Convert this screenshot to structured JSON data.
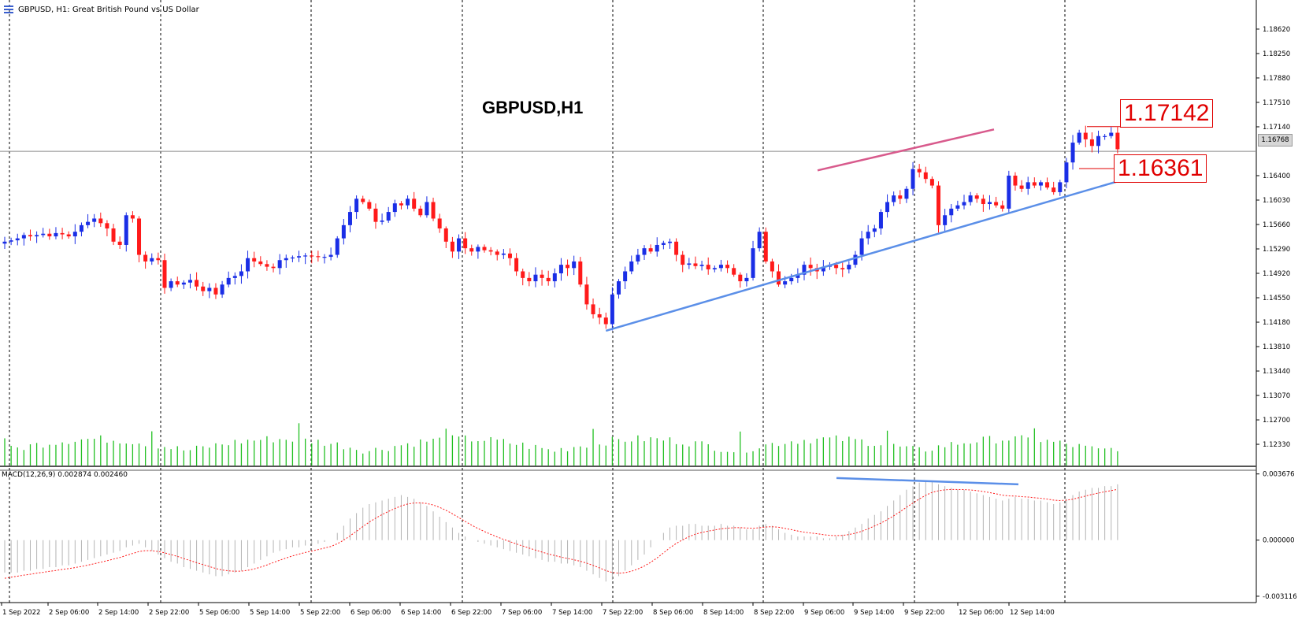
{
  "header": {
    "symbol": "GBPUSD, H1:",
    "description": "Great British Pound vs US Dollar"
  },
  "chart_title": "GBPUSD,H1",
  "macd_label": "MACD(12,26,9) 0.002874 0.002460",
  "current_price": "1.16768",
  "level_labels": [
    "1.17142",
    "1.16361"
  ],
  "colors": {
    "bull_candle": "#1a2ee6",
    "bear_candle": "#ff1a1a",
    "volume": "#22c022",
    "macd_histogram": "#b4b4b4",
    "macd_signal": "#ff1a1a",
    "trend_support": "#5b8fe8",
    "trend_resistance": "#d85a8c",
    "macd_trend": "#5b8fe8",
    "level_label": "#e00000"
  },
  "chart_data": [
    {
      "type": "candlestick",
      "title": "GBPUSD,H1",
      "y_ticks": [
        "1.18620",
        "1.18250",
        "1.17880",
        "1.17510",
        "1.17140",
        "1.16400",
        "1.16030",
        "1.15660",
        "1.15290",
        "1.14920",
        "1.14550",
        "1.14180",
        "1.13810",
        "1.13440",
        "1.13070",
        "1.12700",
        "1.12330"
      ],
      "ylim": [
        1.1208,
        1.1887
      ],
      "x_ticks": [
        "1 Sep 2022",
        "2 Sep 06:00",
        "2 Sep 14:00",
        "2 Sep 22:00",
        "5 Sep 06:00",
        "5 Sep 14:00",
        "5 Sep 22:00",
        "6 Sep 06:00",
        "6 Sep 14:00",
        "6 Sep 22:00",
        "7 Sep 06:00",
        "7 Sep 14:00",
        "7 Sep 22:00",
        "8 Sep 06:00",
        "8 Sep 14:00",
        "8 Sep 22:00",
        "9 Sep 06:00",
        "9 Sep 14:00",
        "9 Sep 22:00",
        "12 Sep 06:00",
        "12 Sep 14:00"
      ],
      "day_separators": [
        "2 Sep",
        "5 Sep",
        "6 Sep",
        "7 Sep",
        "8 Sep",
        "9 Sep",
        "12 Sep",
        "13 Sep"
      ],
      "close": [
        1.154,
        1.1542,
        1.1545,
        1.155,
        1.1548,
        1.155,
        1.1552,
        1.1548,
        1.1553,
        1.1551,
        1.1548,
        1.1555,
        1.1565,
        1.157,
        1.1575,
        1.1568,
        1.156,
        1.154,
        1.1535,
        1.158,
        1.1575,
        1.152,
        1.151,
        1.1515,
        1.1512,
        1.147,
        1.148,
        1.1475,
        1.1478,
        1.1482,
        1.1472,
        1.1465,
        1.147,
        1.146,
        1.1475,
        1.1485,
        1.1488,
        1.1495,
        1.1515,
        1.151,
        1.1506,
        1.1502,
        1.15,
        1.1512,
        1.1515,
        1.1516,
        1.1518,
        1.1519,
        1.1518,
        1.1517,
        1.1517,
        1.152,
        1.1545,
        1.1565,
        1.1585,
        1.1605,
        1.16,
        1.159,
        1.157,
        1.1572,
        1.1585,
        1.1598,
        1.1595,
        1.1605,
        1.159,
        1.158,
        1.16,
        1.1575,
        1.156,
        1.154,
        1.1525,
        1.1545,
        1.153,
        1.1525,
        1.1532,
        1.1527,
        1.1525,
        1.152,
        1.1522,
        1.1515,
        1.1495,
        1.1485,
        1.148,
        1.149,
        1.1485,
        1.148,
        1.1492,
        1.1505,
        1.15,
        1.151,
        1.1475,
        1.1445,
        1.143,
        1.1425,
        1.1415,
        1.146,
        1.148,
        1.1495,
        1.151,
        1.152,
        1.153,
        1.1525,
        1.1535,
        1.1538,
        1.154,
        1.152,
        1.1505,
        1.1507,
        1.1503,
        1.1505,
        1.1498,
        1.15,
        1.1505,
        1.15,
        1.149,
        1.148,
        1.1485,
        1.153,
        1.1555,
        1.151,
        1.1495,
        1.1475,
        1.148,
        1.1485,
        1.149,
        1.1505,
        1.15,
        1.1495,
        1.1502,
        1.1505,
        1.15,
        1.1498,
        1.1505,
        1.152,
        1.1545,
        1.1555,
        1.156,
        1.1585,
        1.16,
        1.161,
        1.1605,
        1.162,
        1.165,
        1.1645,
        1.1635,
        1.1625,
        1.1565,
        1.158,
        1.159,
        1.1595,
        1.16,
        1.161,
        1.1605,
        1.1597,
        1.16,
        1.1595,
        1.159,
        1.164,
        1.1625,
        1.162,
        1.163,
        1.1625,
        1.163,
        1.1622,
        1.1615,
        1.163,
        1.166,
        1.169,
        1.1705,
        1.1695,
        1.1685,
        1.17,
        1.17,
        1.1705,
        1.168
      ],
      "volume_scale": [
        0.02,
        0.05,
        0.08,
        0.18,
        0.25,
        0.2,
        0.18,
        0.12,
        0.22,
        0.25,
        0.3,
        0.35,
        0.3,
        0.32,
        0.3,
        0.28,
        0.3,
        0.4,
        0.85,
        0.8,
        0.75,
        0.5,
        0.4,
        0.3,
        0.15
      ]
    },
    {
      "type": "line",
      "title": "MACD(12,26,9)",
      "y_ticks": [
        "0.003676",
        "0.000000",
        "-0.003116"
      ],
      "ylim": [
        -0.00325,
        0.00375
      ],
      "histogram": [
        -0.0018,
        -0.0018,
        -0.0018,
        -0.0017,
        -0.0017,
        -0.0016,
        -0.0016,
        -0.0015,
        -0.0015,
        -0.0014,
        -0.0014,
        -0.0013,
        -0.0012,
        -0.0011,
        -0.001,
        -0.0009,
        -0.0008,
        -0.0007,
        -0.0006,
        -0.0004,
        -0.0003,
        -0.0002,
        -0.0004,
        -0.0006,
        -0.0008,
        -0.001,
        -0.0012,
        -0.0013,
        -0.0015,
        -0.0016,
        -0.0017,
        -0.0018,
        -0.0019,
        -0.002,
        -0.002,
        -0.0019,
        -0.0018,
        -0.0017,
        -0.0015,
        -0.0013,
        -0.0011,
        -0.0009,
        -0.0007,
        -0.0006,
        -0.0005,
        -0.0004,
        -0.0004,
        -0.0003,
        -0.0003,
        -0.0002,
        -0.0001,
        0.0,
        0.0004,
        0.0008,
        0.0012,
        0.0015,
        0.0018,
        0.002,
        0.0021,
        0.0022,
        0.0023,
        0.0024,
        0.0025,
        0.0024,
        0.0023,
        0.0021,
        0.0019,
        0.0016,
        0.0013,
        0.001,
        0.0007,
        0.0004,
        0.0002,
        0.0,
        -0.0001,
        -0.0002,
        -0.0003,
        -0.0004,
        -0.0005,
        -0.0006,
        -0.0007,
        -0.0008,
        -0.0009,
        -0.001,
        -0.0011,
        -0.0012,
        -0.0012,
        -0.0013,
        -0.0013,
        -0.0014,
        -0.0015,
        -0.0017,
        -0.0019,
        -0.0021,
        -0.0023,
        -0.0022,
        -0.002,
        -0.0017,
        -0.0014,
        -0.0011,
        -0.0008,
        -0.0004,
        0.0,
        0.0004,
        0.0007,
        0.0008,
        0.0008,
        0.0009,
        0.0009,
        0.0008,
        0.0008,
        0.0008,
        0.0009,
        0.0008,
        0.0008,
        0.0007,
        0.0006,
        0.0006,
        0.0008,
        0.0009,
        0.0008,
        0.0006,
        0.0004,
        0.0003,
        0.0002,
        0.0002,
        0.0002,
        0.0002,
        0.0001,
        0.0001,
        0.0002,
        0.0003,
        0.0005,
        0.0007,
        0.0009,
        0.0012,
        0.0014,
        0.0016,
        0.0019,
        0.0022,
        0.0025,
        0.0028,
        0.003,
        0.0032,
        0.0033,
        0.0033,
        0.0031,
        0.003,
        0.0029,
        0.0028,
        0.0028,
        0.0027,
        0.0026,
        0.0025,
        0.0024,
        0.0023,
        0.0022,
        0.0023,
        0.0024,
        0.0023,
        0.0023,
        0.0022,
        0.0022,
        0.0021,
        0.002,
        0.0021,
        0.0023,
        0.0025,
        0.0027,
        0.0028,
        0.0029,
        0.0029,
        0.003,
        0.003,
        0.0031
      ],
      "signal_start": -0.0022
    }
  ]
}
